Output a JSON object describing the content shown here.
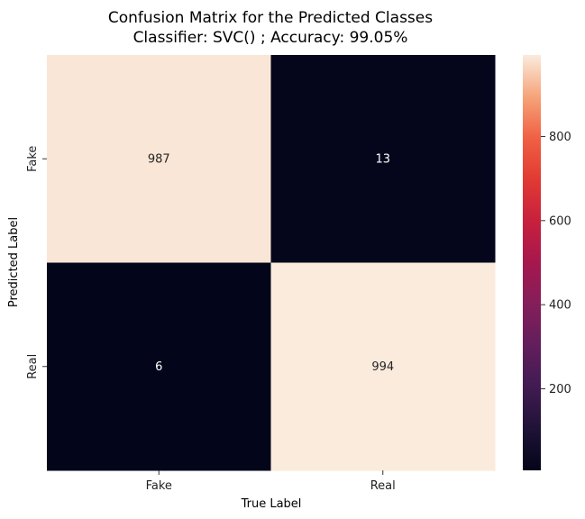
{
  "chart_data": {
    "type": "heatmap",
    "title": "Confusion Matrix for the Predicted Classes",
    "subtitle": "Classifier: SVC() ; Accuracy: 99.05%",
    "xlabel": "True Label",
    "ylabel": "Predicted Label",
    "x_categories": [
      "Fake",
      "Real"
    ],
    "y_categories": [
      "Fake",
      "Real"
    ],
    "values": [
      [
        987,
        13
      ],
      [
        6,
        994
      ]
    ],
    "colorbar": {
      "ticks": [
        200,
        400,
        600,
        800
      ],
      "range": [
        6,
        994
      ],
      "colormap": "rocket"
    },
    "grid": false
  }
}
